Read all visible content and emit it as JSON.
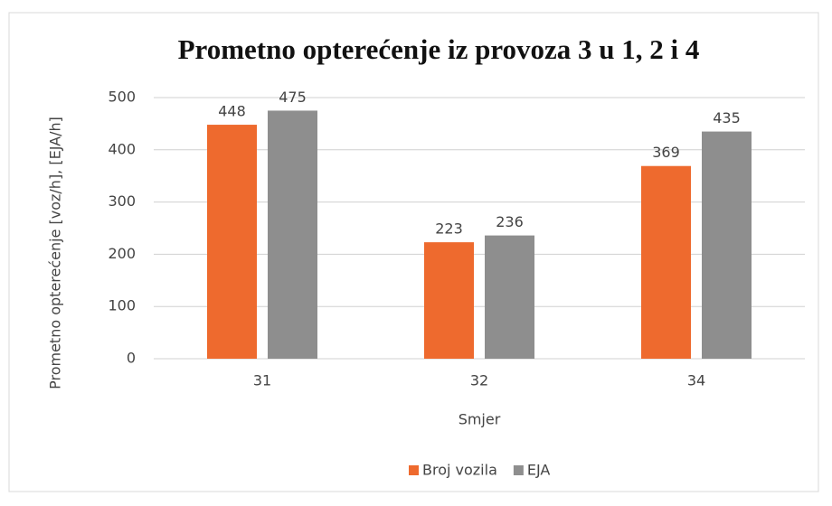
{
  "chart_data": {
    "type": "bar",
    "title": "Prometno opterećenje iz provoza 3 u 1, 2 i 4",
    "x_label": "Smjer",
    "y_label": "Prometno opterećenje [voz/h], [EJA/h]",
    "categories": [
      "31",
      "32",
      "34"
    ],
    "series": [
      {
        "name": "Broj vozila",
        "color": "#ee6a2e",
        "values": [
          448,
          223,
          369
        ]
      },
      {
        "name": "EJA",
        "color": "#8e8e8e",
        "values": [
          475,
          236,
          435
        ]
      }
    ],
    "ylim": [
      0,
      500
    ],
    "yticks": [
      0,
      100,
      200,
      300,
      400,
      500
    ],
    "grid": true,
    "legend": "bottom"
  }
}
